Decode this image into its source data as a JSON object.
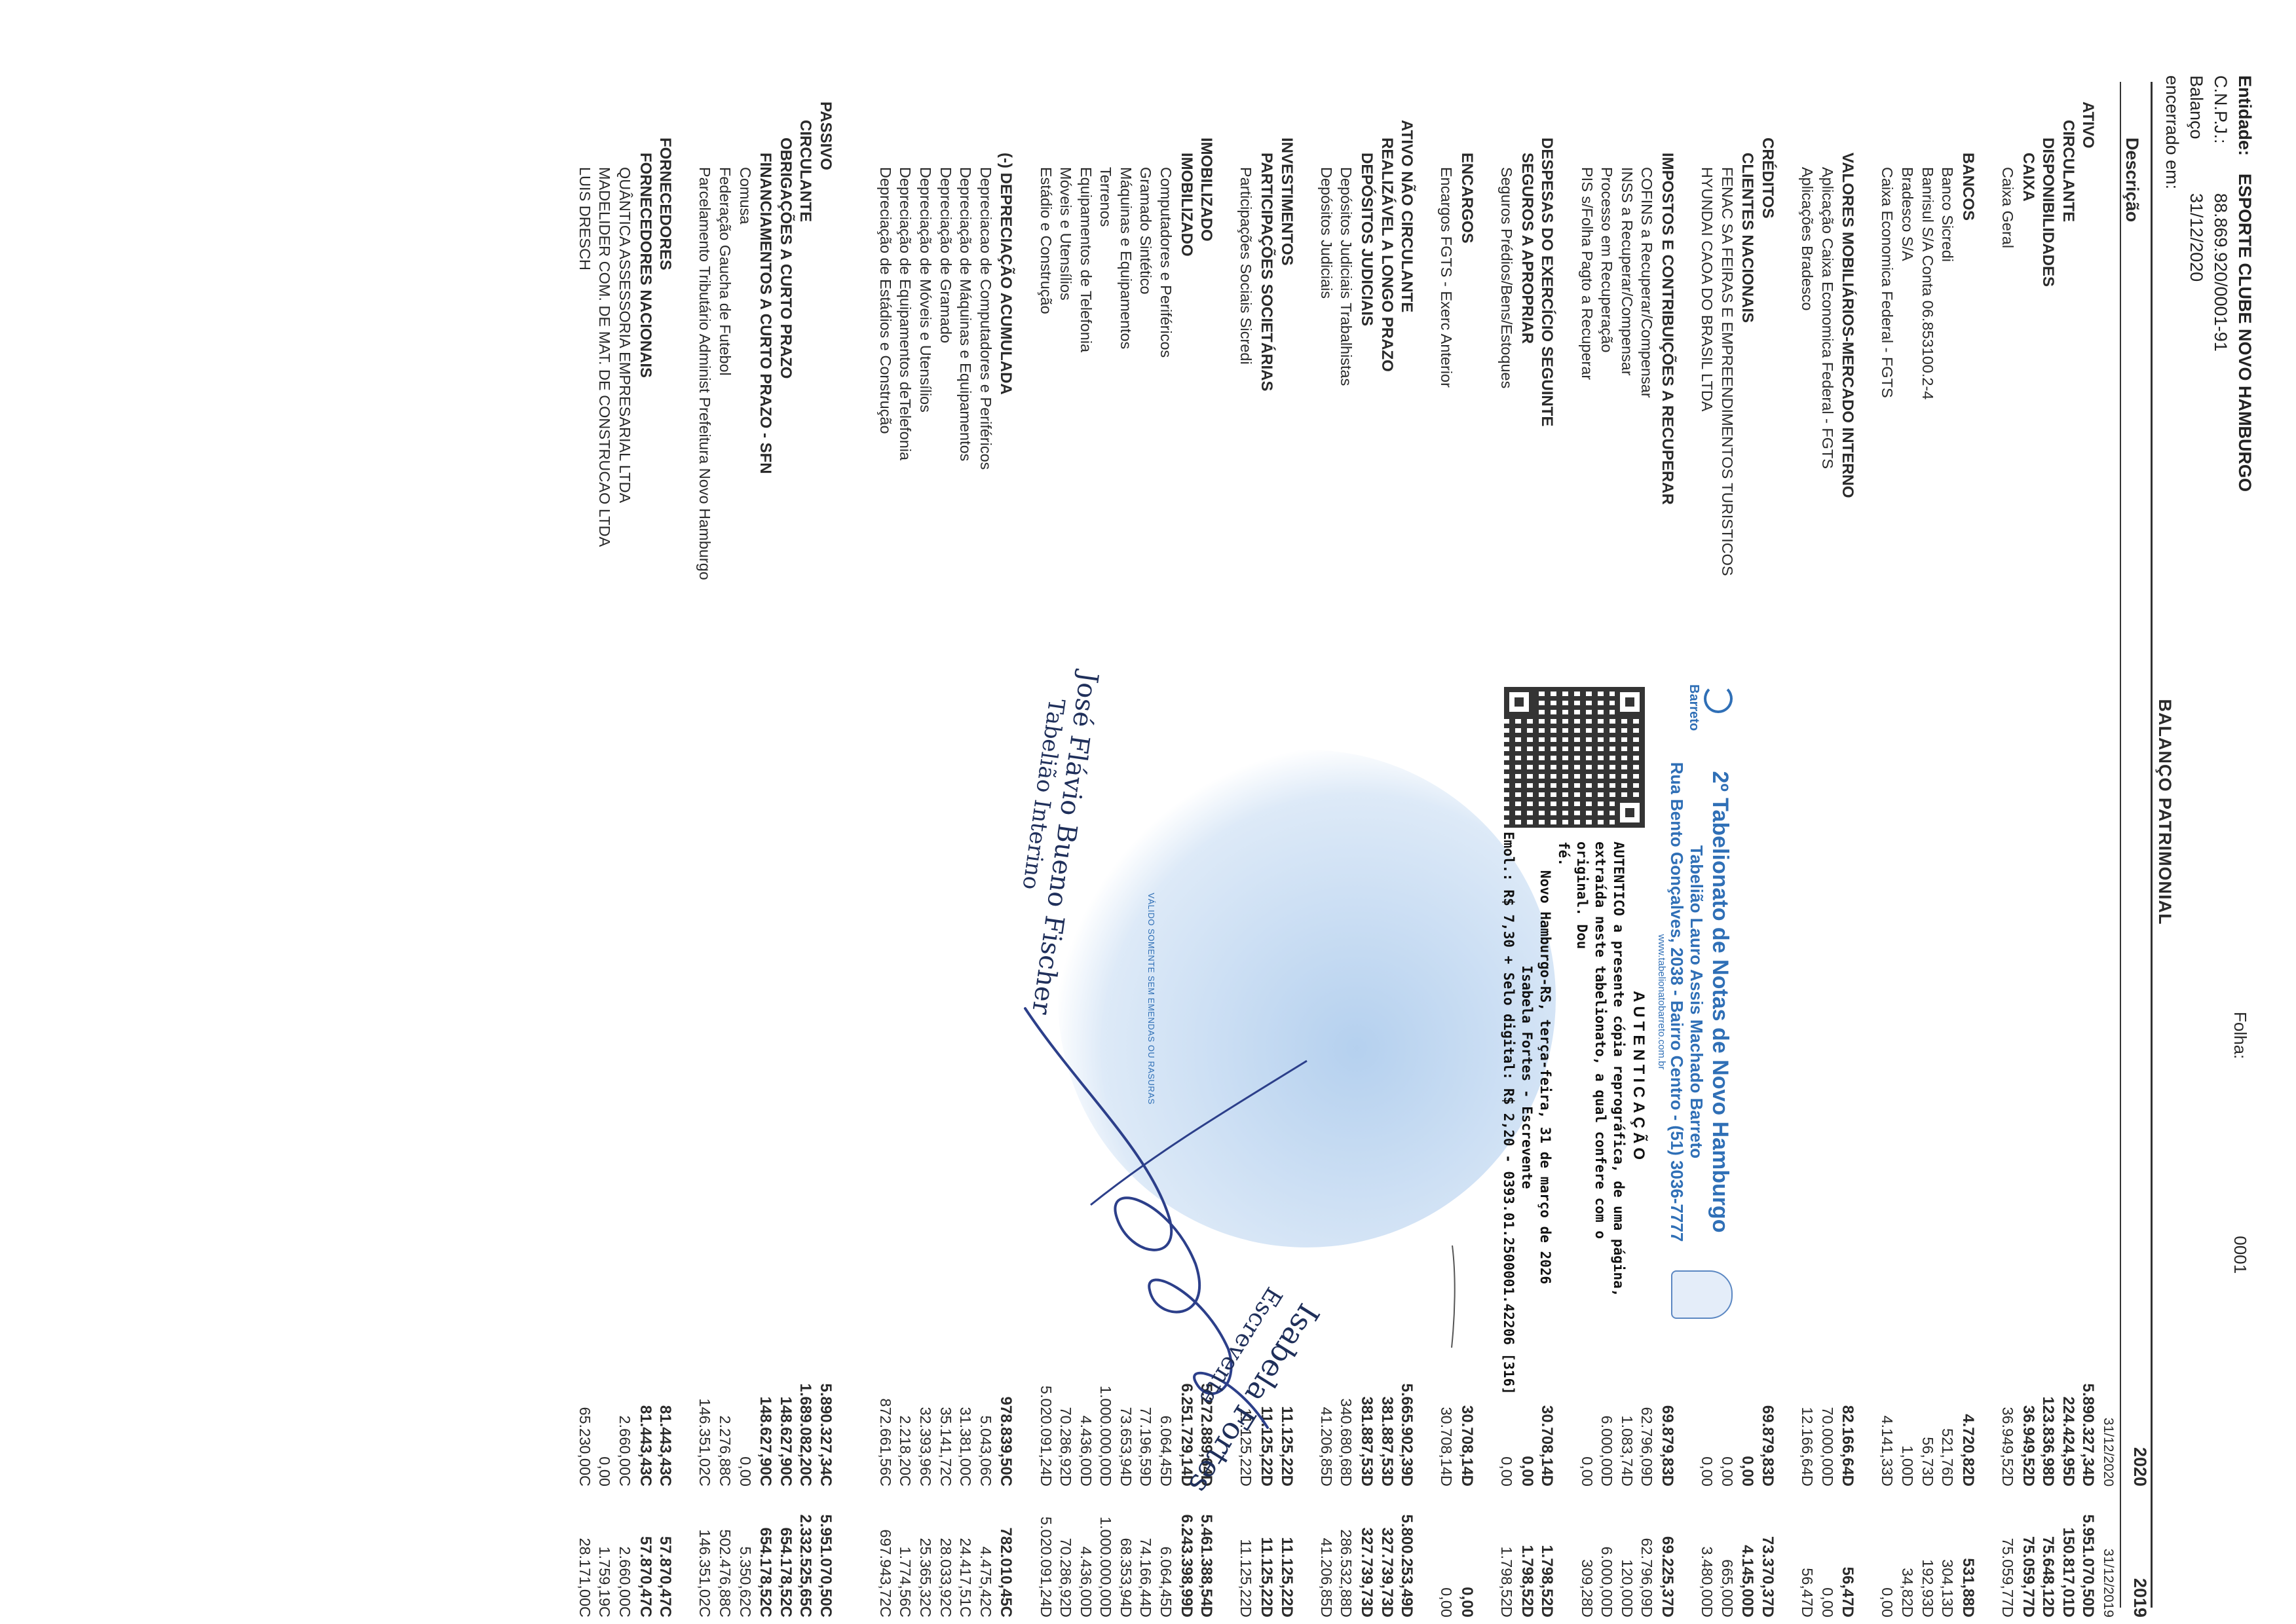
{
  "header": {
    "entity_label": "Entidade:",
    "entity_name": "ESPORTE CLUBE NOVO HAMBURGO",
    "cnpj_label": "C.N.P.J.:",
    "cnpj": "88.869.920/0001-91",
    "closed_label": "Balanço encerrado em:",
    "closed_date": "31/12/2020",
    "title": "BALANÇO PATRIMONIAL",
    "folha_label": "Folha:",
    "folha_number": "0001"
  },
  "columns": {
    "description": "Descrição",
    "year_2020": "2020",
    "year_2019": "2019"
  },
  "rows": [
    {
      "d": "",
      "v1": "31/12/2020",
      "v2": "31/12/2019",
      "lvl": 0,
      "b": false,
      "small": true
    },
    {
      "d": "ATIVO",
      "v1": "5.890.327,34D",
      "v2": "5.951.070,50D",
      "lvl": 1,
      "b": true
    },
    {
      "d": "CIRCULANTE",
      "v1": "224.424,95D",
      "v2": "150.817,01D",
      "lvl": 2,
      "b": true
    },
    {
      "d": "DISPONIBILIDADES",
      "v1": "123.836,98D",
      "v2": "75.648,12D",
      "lvl": 3,
      "b": true
    },
    {
      "d": "CAIXA",
      "v1": "36.949,52D",
      "v2": "75.059,77D",
      "lvl": 4,
      "b": true
    },
    {
      "d": "Caixa Geral",
      "v1": "36.949,52D",
      "v2": "75.059,77D",
      "lvl": 5,
      "b": false
    },
    {
      "d": "",
      "v1": "",
      "v2": "",
      "lvl": 0,
      "b": false
    },
    {
      "d": "BANCOS",
      "v1": "4.720,82D",
      "v2": "531,88D",
      "lvl": 4,
      "b": true
    },
    {
      "d": "Banco Sicredi",
      "v1": "521,76D",
      "v2": "304,13D",
      "lvl": 5,
      "b": false
    },
    {
      "d": "Banrisul S/A Conta 06.853100.2-4",
      "v1": "56,73D",
      "v2": "192,93D",
      "lvl": 5,
      "b": false
    },
    {
      "d": "Bradesco S/A",
      "v1": "1,00D",
      "v2": "34,82D",
      "lvl": 5,
      "b": false
    },
    {
      "d": "Caixa Economica Federal - FGTS",
      "v1": "4.141,33D",
      "v2": "0,00",
      "lvl": 5,
      "b": false
    },
    {
      "d": "",
      "v1": "",
      "v2": "",
      "lvl": 0,
      "b": false
    },
    {
      "d": "VALORES MOBILIÁRIOS-MERCADO INTERNO",
      "v1": "82.166,64D",
      "v2": "56,47D",
      "lvl": 4,
      "b": true
    },
    {
      "d": "Aplicação Caixa Economica Federal - FGTS",
      "v1": "70.000,00D",
      "v2": "0,00",
      "lvl": 5,
      "b": false
    },
    {
      "d": "Aplicações Bradesco",
      "v1": "12.166,64D",
      "v2": "56,47D",
      "lvl": 5,
      "b": false
    },
    {
      "d": "",
      "v1": "",
      "v2": "",
      "lvl": 0,
      "b": false
    },
    {
      "d": "CRÉDITOS",
      "v1": "69.879,83D",
      "v2": "73.370,37D",
      "lvl": 3,
      "b": true
    },
    {
      "d": "CLIENTES NACIONAIS",
      "v1": "0,00",
      "v2": "4.145,00D",
      "lvl": 4,
      "b": true
    },
    {
      "d": "FENAC SA FEIRAS E EMPREENDIMENTOS TURISTICOS",
      "v1": "0,00",
      "v2": "665,00D",
      "lvl": 5,
      "b": false
    },
    {
      "d": "HYUNDAI CAOA DO BRASIL LTDA",
      "v1": "0,00",
      "v2": "3.480,00D",
      "lvl": 5,
      "b": false
    },
    {
      "d": "",
      "v1": "",
      "v2": "",
      "lvl": 0,
      "b": false
    },
    {
      "d": "IMPOSTOS E CONTRIBUIÇÕES A RECUPERAR",
      "v1": "69.879,83D",
      "v2": "69.225,37D",
      "lvl": 4,
      "b": true
    },
    {
      "d": "COFINS a Recuperar/Compensar",
      "v1": "62.796,09D",
      "v2": "62.796,09D",
      "lvl": 5,
      "b": false
    },
    {
      "d": "INSS a Recuperar/Compensar",
      "v1": "1.083,74D",
      "v2": "120,00D",
      "lvl": 5,
      "b": false
    },
    {
      "d": "Processo em Recuperação",
      "v1": "6.000,00D",
      "v2": "6.000,00D",
      "lvl": 5,
      "b": false
    },
    {
      "d": "PIS s/Folha Pagto a Recuperar",
      "v1": "0,00",
      "v2": "309,28D",
      "lvl": 5,
      "b": false
    },
    {
      "d": "",
      "v1": "",
      "v2": "",
      "lvl": 0,
      "b": false
    },
    {
      "d": "DESPESAS DO EXERCÍCIO SEGUINTE",
      "v1": "30.708,14D",
      "v2": "1.798,52D",
      "lvl": 3,
      "b": true
    },
    {
      "d": "SEGUROS A APROPRIAR",
      "v1": "0,00",
      "v2": "1.798,52D",
      "lvl": 4,
      "b": true
    },
    {
      "d": "Seguros Prédios/Bens/Estoques",
      "v1": "0,00",
      "v2": "1.798,52D",
      "lvl": 5,
      "b": false
    },
    {
      "d": "",
      "v1": "",
      "v2": "",
      "lvl": 0,
      "b": false
    },
    {
      "d": "ENCARGOS",
      "v1": "30.708,14D",
      "v2": "0,00",
      "lvl": 4,
      "b": true
    },
    {
      "d": "Encargos FGTS - Exerc Anterior",
      "v1": "30.708,14D",
      "v2": "0,00",
      "lvl": 5,
      "b": false
    },
    {
      "d": "",
      "v1": "",
      "v2": "",
      "lvl": 0,
      "b": false
    },
    {
      "d": "ATIVO NÃO CIRCULANTE",
      "v1": "5.665.902,39D",
      "v2": "5.800.253,49D",
      "lvl": 2,
      "b": true
    },
    {
      "d": "REALIZÁVEL A LONGO PRAZO",
      "v1": "381.887,53D",
      "v2": "327.739,73D",
      "lvl": 3,
      "b": true
    },
    {
      "d": "DEPÓSITOS JUDICIAIS",
      "v1": "381.887,53D",
      "v2": "327.739,73D",
      "lvl": 4,
      "b": true
    },
    {
      "d": "Depósitos Judiciais Trabalhistas",
      "v1": "340.680,68D",
      "v2": "286.532,88D",
      "lvl": 5,
      "b": false
    },
    {
      "d": "Depósitos Judiciais",
      "v1": "41.206,85D",
      "v2": "41.206,85D",
      "lvl": 5,
      "b": false
    },
    {
      "d": "",
      "v1": "",
      "v2": "",
      "lvl": 0,
      "b": false
    },
    {
      "d": "INVESTIMENTOS",
      "v1": "11.125,22D",
      "v2": "11.125,22D",
      "lvl": 3,
      "b": true
    },
    {
      "d": "PARTICIPAÇÕES SOCIETÁRIAS",
      "v1": "11.125,22D",
      "v2": "11.125,22D",
      "lvl": 4,
      "b": true
    },
    {
      "d": "Participações Sociais Sicredi",
      "v1": "11.125,22D",
      "v2": "11.125,22D",
      "lvl": 5,
      "b": false
    },
    {
      "d": "",
      "v1": "",
      "v2": "",
      "lvl": 0,
      "b": false
    },
    {
      "d": "IMOBILIZADO",
      "v1": "5.272.889,64D",
      "v2": "5.461.388,54D",
      "lvl": 3,
      "b": true
    },
    {
      "d": "IMOBILIZADO",
      "v1": "6.251.729,14D",
      "v2": "6.243.398,99D",
      "lvl": 4,
      "b": true
    },
    {
      "d": "Computadores e Periféricos",
      "v1": "6.064,45D",
      "v2": "6.064,45D",
      "lvl": 5,
      "b": false
    },
    {
      "d": "Gramado Sintético",
      "v1": "77.196,59D",
      "v2": "74.166,44D",
      "lvl": 5,
      "b": false
    },
    {
      "d": "Máquinas e Equipamentos",
      "v1": "73.653,94D",
      "v2": "68.353,94D",
      "lvl": 5,
      "b": false
    },
    {
      "d": "Terrenos",
      "v1": "1.000.000,00D",
      "v2": "1.000.000,00D",
      "lvl": 5,
      "b": false
    },
    {
      "d": "Equipamentos de Telefonia",
      "v1": "4.436,00D",
      "v2": "4.436,00D",
      "lvl": 5,
      "b": false
    },
    {
      "d": "Móveis e Utensílios",
      "v1": "70.286,92D",
      "v2": "70.286,92D",
      "lvl": 5,
      "b": false
    },
    {
      "d": "Estádio e Construção",
      "v1": "5.020.091,24D",
      "v2": "5.020.091,24D",
      "lvl": 5,
      "b": false
    },
    {
      "d": "",
      "v1": "",
      "v2": "",
      "lvl": 0,
      "b": false
    },
    {
      "d": "(-) DEPRECIAÇÃO ACUMULADA",
      "v1": "978.839,50C",
      "v2": "782.010,45C",
      "lvl": 4,
      "b": true
    },
    {
      "d": "Depreciacao de Computadores e Periféricos",
      "v1": "5.043,06C",
      "v2": "4.475,42C",
      "lvl": 5,
      "b": false
    },
    {
      "d": "Depreciação de Máquinas e Equipamentos",
      "v1": "31.381,00C",
      "v2": "24.417,51C",
      "lvl": 5,
      "b": false
    },
    {
      "d": "Depreciação de Gramado",
      "v1": "35.141,72C",
      "v2": "28.033,92C",
      "lvl": 5,
      "b": false
    },
    {
      "d": "Depreciação de Móveis e Utensílios",
      "v1": "32.393,96C",
      "v2": "25.365,32C",
      "lvl": 5,
      "b": false
    },
    {
      "d": "Depreciação de Equipamentos deTelefonia",
      "v1": "2.218,20C",
      "v2": "1.774,56C",
      "lvl": 5,
      "b": false
    },
    {
      "d": "Depreciação de Estádios e Construção",
      "v1": "872.661,56C",
      "v2": "697.943,72C",
      "lvl": 5,
      "b": false
    },
    {
      "d": "",
      "v1": "",
      "v2": "",
      "lvl": 0,
      "b": false
    },
    {
      "d": "",
      "v1": "",
      "v2": "",
      "lvl": 0,
      "b": false
    },
    {
      "d": "PASSIVO",
      "v1": "5.890.327,34C",
      "v2": "5.951.070,50C",
      "lvl": 1,
      "b": true
    },
    {
      "d": "CIRCULANTE",
      "v1": "1.689.082,20C",
      "v2": "2.332.525,65C",
      "lvl": 2,
      "b": true
    },
    {
      "d": "OBRIGAÇÕES A CURTO PRAZO",
      "v1": "148.627,90C",
      "v2": "654.178,52C",
      "lvl": 3,
      "b": true
    },
    {
      "d": "FINANCIAMENTOS A CURTO PRAZO - SFN",
      "v1": "148.627,90C",
      "v2": "654.178,52C",
      "lvl": 4,
      "b": true
    },
    {
      "d": "Comusa",
      "v1": "0,00",
      "v2": "5.350,62C",
      "lvl": 5,
      "b": false
    },
    {
      "d": "Federação Gaucha de Futebol",
      "v1": "2.276,88C",
      "v2": "502.476,88C",
      "lvl": 5,
      "b": false
    },
    {
      "d": "Parcelamento Tributário Administ Prefeitura Novo Hamburgo",
      "v1": "146.351,02C",
      "v2": "146.351,02C",
      "lvl": 5,
      "b": false
    },
    {
      "d": "",
      "v1": "",
      "v2": "",
      "lvl": 0,
      "b": false
    },
    {
      "d": "FORNECEDORES",
      "v1": "81.443,43C",
      "v2": "57.870,47C",
      "lvl": 3,
      "b": true
    },
    {
      "d": "FORNECEDORES NACIONAIS",
      "v1": "81.443,43C",
      "v2": "57.870,47C",
      "lvl": 4,
      "b": true
    },
    {
      "d": "QUÂNTICA ASSESSORIA EMPRESARIAL LTDA",
      "v1": "2.660,00C",
      "v2": "2.660,00C",
      "lvl": 5,
      "b": false
    },
    {
      "d": "MADELIDER COM. DE MAT. DE CONSTRUCAO LTDA",
      "v1": "0,00",
      "v2": "1.759,19C",
      "lvl": 5,
      "b": false
    },
    {
      "d": "LUIS DRESCH",
      "v1": "65.230,00C",
      "v2": "28.171,00C",
      "lvl": 5,
      "b": false
    }
  ],
  "stamp": {
    "logo_text": "Barreto",
    "office_title": "2º Tabelionato de Notas de Novo Hamburgo",
    "notary": "Tabelião Lauro Assis Machado Barreto",
    "address": "Rua Bento Gonçalves, 2038 - Bairro Centro - (51) 3036-7777",
    "website": "www.tabelionatobarreto.com.br",
    "auth_title": "AUTENTICAÇÃO",
    "auth_line1": "AUTENTICO a presente cópia reprográfica, de uma página,",
    "auth_line2": "extraída neste tabelionato, a qual confere com o original. Dou",
    "auth_line3": "fé.",
    "auth_line4": "Novo Hamburgo-RS, terça-feira, 31 de março de 2026",
    "auth_line5": "Isabela Fortes - Escrevente",
    "fee_line": "Emol.: R$ 7,30 + Selo digital: R$ 2,20 - 0393.01.2500001.42206 [316]",
    "valid_note": "VÁLIDO SOMENTE SEM EMENDAS OU RASURAS"
  },
  "signatures": {
    "left_name": "José Flávio Bueno Fischer",
    "left_role": "Tabelião Interino",
    "right_name": "Isabela Fortes",
    "right_role": "Escrevente"
  }
}
